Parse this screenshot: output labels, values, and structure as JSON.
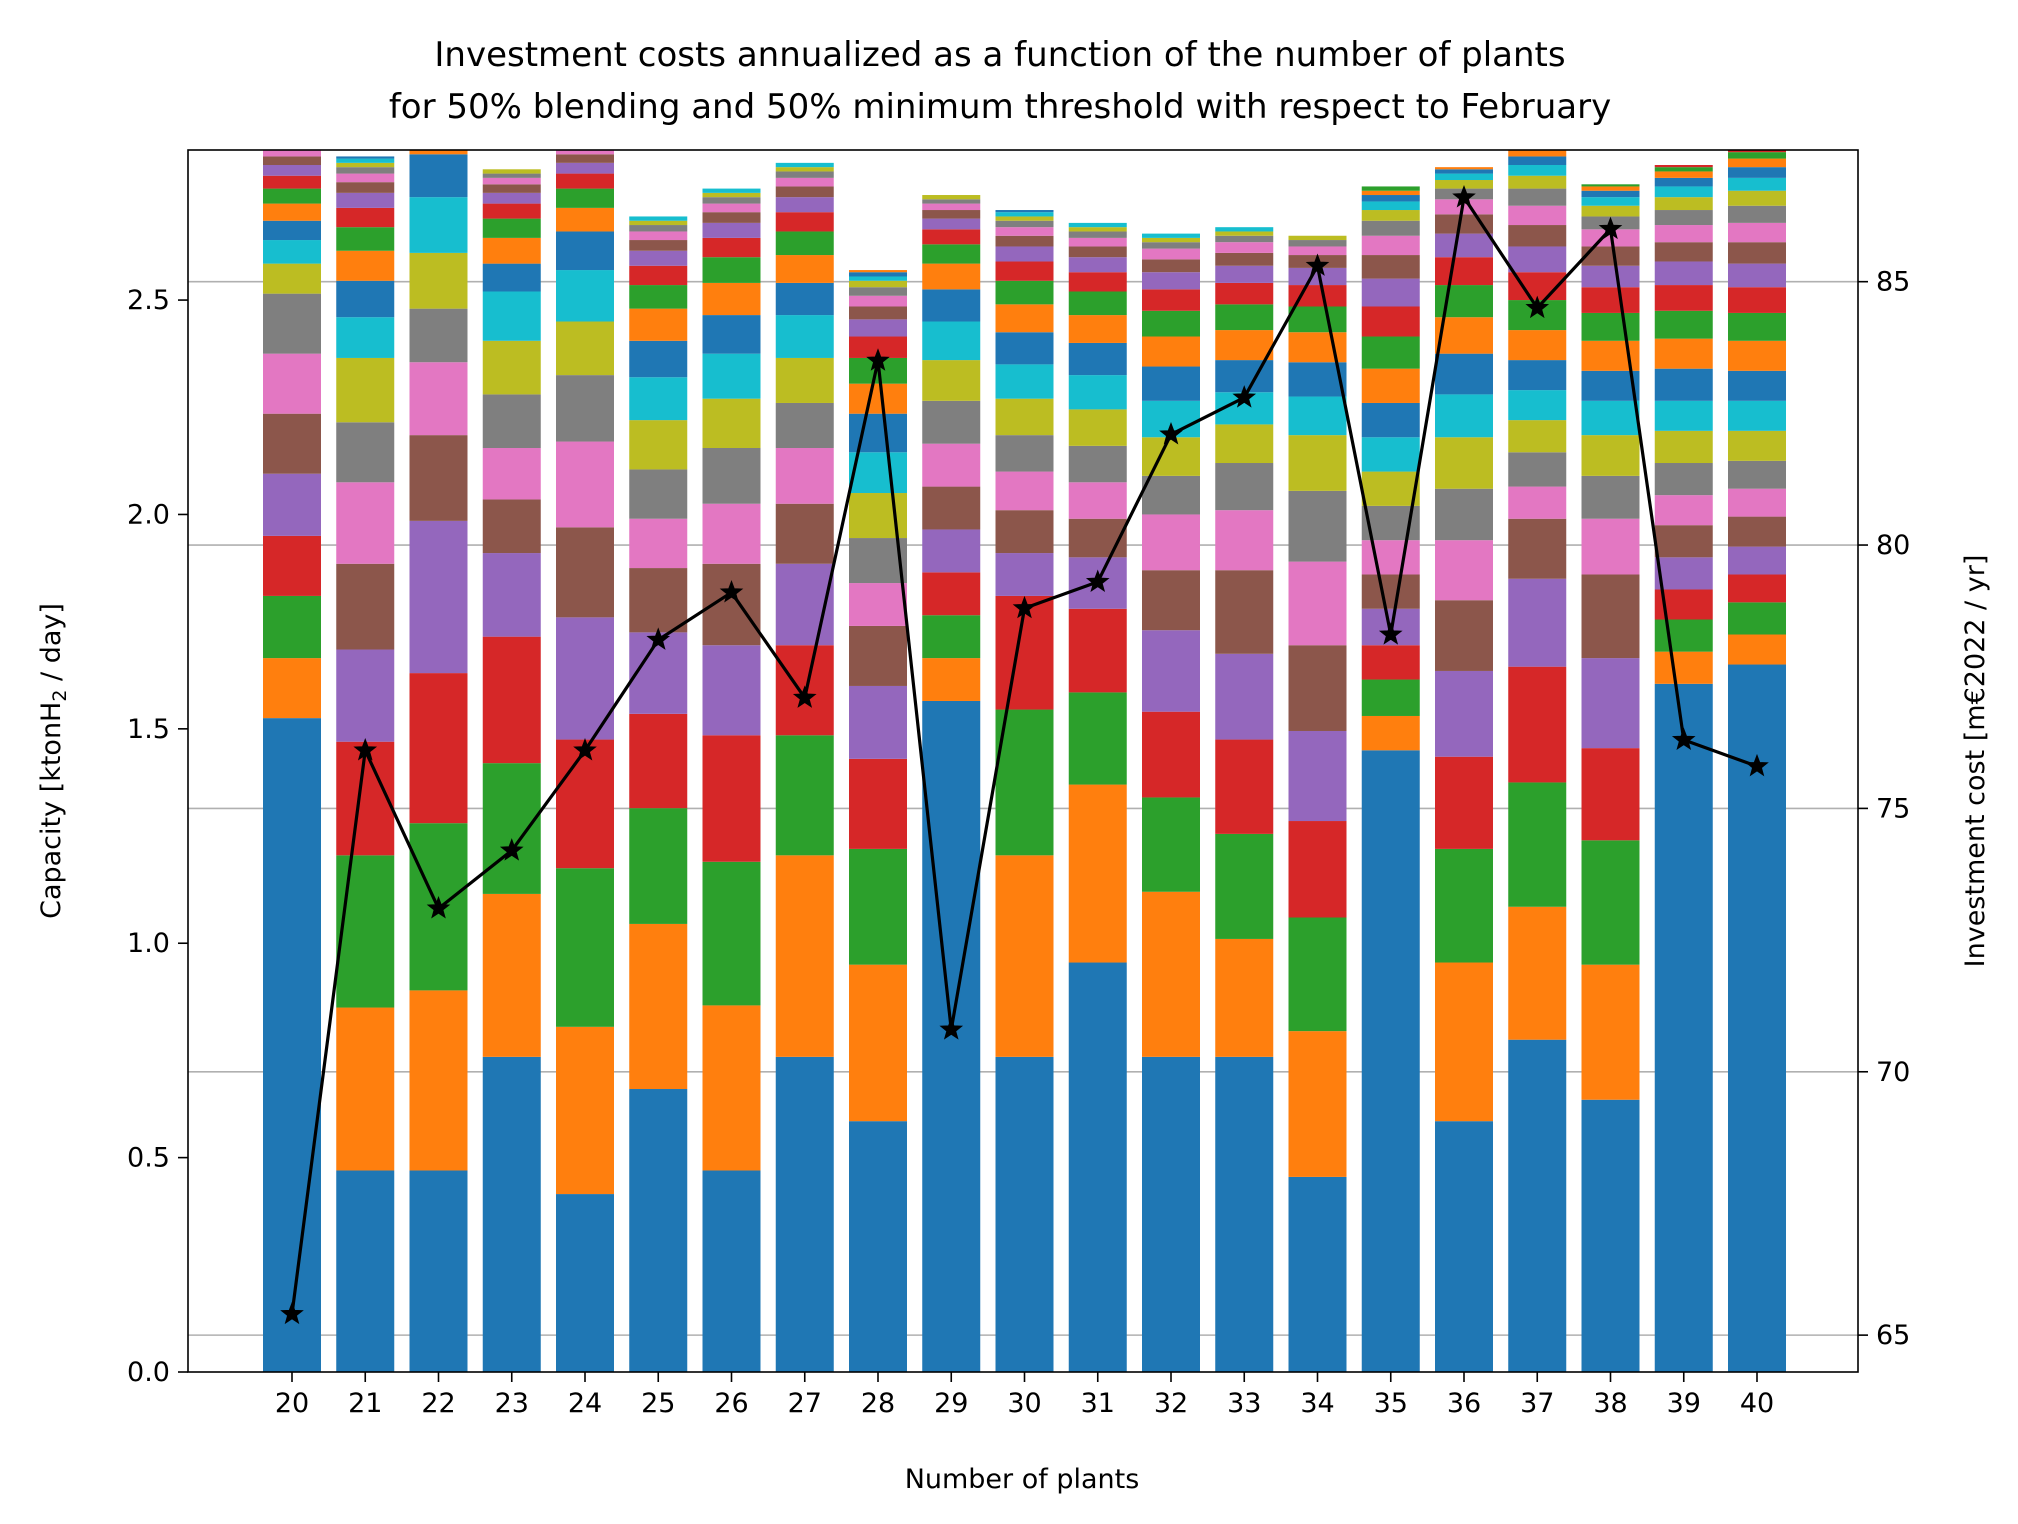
{
  "chart_data": {
    "type": "bar",
    "stacked": true,
    "title_lines": [
      "Investment costs annualized as a function of the number of plants",
      "for 50% blending and 50% minimum threshold with respect to February"
    ],
    "xlabel": "Number of plants",
    "ylabel_left_main": "Capacity [ktonH",
    "ylabel_left_sub": "2",
    "ylabel_left_tail": " / day]",
    "ylabel_right": "Investment cost [m€2022 / yr]",
    "categories": [
      "20",
      "21",
      "22",
      "23",
      "24",
      "25",
      "26",
      "27",
      "28",
      "29",
      "30",
      "31",
      "32",
      "33",
      "34",
      "35",
      "36",
      "37",
      "38",
      "39",
      "40"
    ],
    "left_yticks": [
      "0.0",
      "0.5",
      "1.0",
      "1.5",
      "2.0",
      "2.5"
    ],
    "right_yticks": [
      "65",
      "70",
      "75",
      "80",
      "85"
    ],
    "left_ylim": [
      0,
      2.85
    ],
    "right_ylim": [
      64.3,
      87.5
    ],
    "grid": "right-axis horizontal",
    "palette": [
      "#1f77b4",
      "#ff7f0e",
      "#2ca02c",
      "#d62728",
      "#9467bd",
      "#8c564b",
      "#e377c2",
      "#7f7f7f",
      "#bcbd22",
      "#17becf"
    ],
    "stacks": [
      [
        1.525,
        0.14,
        0.145,
        0.14,
        0.145,
        0.14,
        0.14,
        0.14,
        0.07,
        0.055,
        0.045,
        0.04,
        0.035,
        0.03,
        0.025,
        0.02,
        0.015,
        0.015,
        0.01,
        0.01
      ],
      [
        0.47,
        0.38,
        0.355,
        0.265,
        0.215,
        0.2,
        0.19,
        0.14,
        0.15,
        0.095,
        0.085,
        0.07,
        0.055,
        0.045,
        0.035,
        0.025,
        0.02,
        0.015,
        0.01,
        0.01,
        0.005
      ],
      [
        0.47,
        0.42,
        0.39,
        0.35,
        0.355,
        0.2,
        0.17,
        0.125,
        0.13,
        0.13,
        0.1,
        0.055,
        0.045,
        0.035,
        0.025,
        0.02,
        0.015,
        0.015,
        0.01,
        0.01,
        0.005
      ],
      [
        0.735,
        0.38,
        0.305,
        0.295,
        0.195,
        0.125,
        0.12,
        0.125,
        0.125,
        0.115,
        0.065,
        0.06,
        0.045,
        0.035,
        0.025,
        0.02,
        0.015,
        0.01,
        0.01
      ],
      [
        0.415,
        0.39,
        0.37,
        0.3,
        0.285,
        0.21,
        0.2,
        0.155,
        0.125,
        0.12,
        0.09,
        0.055,
        0.045,
        0.035,
        0.025,
        0.02,
        0.015,
        0.015,
        0.01
      ],
      [
        0.66,
        0.385,
        0.27,
        0.22,
        0.19,
        0.15,
        0.115,
        0.115,
        0.115,
        0.1,
        0.085,
        0.075,
        0.055,
        0.045,
        0.035,
        0.025,
        0.02,
        0.015,
        0.01,
        0.01
      ],
      [
        0.47,
        0.385,
        0.335,
        0.295,
        0.21,
        0.19,
        0.14,
        0.13,
        0.115,
        0.105,
        0.09,
        0.075,
        0.06,
        0.045,
        0.035,
        0.025,
        0.02,
        0.015,
        0.01,
        0.01
      ],
      [
        0.735,
        0.47,
        0.28,
        0.21,
        0.19,
        0.14,
        0.13,
        0.105,
        0.105,
        0.1,
        0.075,
        0.065,
        0.055,
        0.045,
        0.035,
        0.025,
        0.02,
        0.015,
        0.01,
        0.01
      ],
      [
        0.585,
        0.365,
        0.27,
        0.21,
        0.17,
        0.14,
        0.1,
        0.105,
        0.105,
        0.095,
        0.09,
        0.07,
        0.06,
        0.05,
        0.04,
        0.03,
        0.025,
        0.02,
        0.015,
        0.01,
        0.01,
        0.005
      ],
      [
        1.565,
        0.1,
        0.1,
        0.1,
        0.1,
        0.1,
        0.1,
        0.1,
        0.095,
        0.09,
        0.075,
        0.06,
        0.045,
        0.035,
        0.025,
        0.02,
        0.015,
        0.01,
        0.01
      ],
      [
        0.735,
        0.47,
        0.34,
        0.265,
        0.1,
        0.1,
        0.09,
        0.085,
        0.085,
        0.08,
        0.075,
        0.065,
        0.055,
        0.045,
        0.035,
        0.025,
        0.02,
        0.015,
        0.01,
        0.01,
        0.005
      ],
      [
        0.955,
        0.415,
        0.215,
        0.195,
        0.12,
        0.09,
        0.085,
        0.085,
        0.085,
        0.08,
        0.075,
        0.065,
        0.055,
        0.045,
        0.035,
        0.025,
        0.02,
        0.015,
        0.01,
        0.01
      ],
      [
        0.735,
        0.385,
        0.22,
        0.2,
        0.19,
        0.14,
        0.13,
        0.09,
        0.09,
        0.085,
        0.08,
        0.07,
        0.06,
        0.05,
        0.04,
        0.03,
        0.025,
        0.015,
        0.01,
        0.01
      ],
      [
        0.735,
        0.275,
        0.245,
        0.22,
        0.2,
        0.195,
        0.14,
        0.11,
        0.09,
        0.075,
        0.075,
        0.07,
        0.06,
        0.05,
        0.04,
        0.03,
        0.025,
        0.015,
        0.01,
        0.01
      ],
      [
        0.455,
        0.34,
        0.265,
        0.225,
        0.21,
        0.2,
        0.195,
        0.165,
        0.13,
        0.09,
        0.08,
        0.07,
        0.06,
        0.05,
        0.04,
        0.03,
        0.02,
        0.015,
        0.01
      ],
      [
        1.45,
        0.08,
        0.085,
        0.08,
        0.085,
        0.08,
        0.08,
        0.08,
        0.08,
        0.08,
        0.08,
        0.08,
        0.075,
        0.07,
        0.065,
        0.055,
        0.045,
        0.035,
        0.025,
        0.02,
        0.015,
        0.01,
        0.01
      ],
      [
        0.585,
        0.37,
        0.265,
        0.215,
        0.2,
        0.165,
        0.14,
        0.12,
        0.12,
        0.1,
        0.095,
        0.085,
        0.075,
        0.065,
        0.055,
        0.045,
        0.035,
        0.025,
        0.02,
        0.015,
        0.01,
        0.005
      ],
      [
        0.775,
        0.31,
        0.29,
        0.27,
        0.205,
        0.14,
        0.075,
        0.08,
        0.075,
        0.07,
        0.07,
        0.07,
        0.07,
        0.065,
        0.06,
        0.05,
        0.045,
        0.04,
        0.03,
        0.025,
        0.02,
        0.015,
        0.01,
        0.005
      ],
      [
        0.635,
        0.315,
        0.29,
        0.215,
        0.21,
        0.195,
        0.13,
        0.1,
        0.095,
        0.08,
        0.07,
        0.07,
        0.065,
        0.06,
        0.05,
        0.045,
        0.04,
        0.03,
        0.025,
        0.02,
        0.015,
        0.01,
        0.005
      ],
      [
        1.605,
        0.075,
        0.075,
        0.07,
        0.075,
        0.075,
        0.07,
        0.075,
        0.075,
        0.07,
        0.075,
        0.07,
        0.065,
        0.06,
        0.055,
        0.045,
        0.04,
        0.035,
        0.03,
        0.025,
        0.02,
        0.015,
        0.01,
        0.005
      ],
      [
        1.65,
        0.07,
        0.075,
        0.065,
        0.065,
        0.07,
        0.065,
        0.065,
        0.07,
        0.07,
        0.07,
        0.07,
        0.065,
        0.06,
        0.055,
        0.05,
        0.045,
        0.04,
        0.035,
        0.03,
        0.025,
        0.02,
        0.015,
        0.01,
        0.005
      ]
    ],
    "line_series": {
      "marker": "star",
      "color": "#000000",
      "values": [
        65.4,
        76.1,
        73.1,
        74.2,
        76.1,
        78.2,
        79.1,
        77.1,
        83.5,
        70.8,
        78.8,
        79.3,
        82.1,
        82.8,
        85.3,
        78.3,
        86.6,
        84.5,
        86.0,
        76.3,
        75.8
      ]
    }
  }
}
